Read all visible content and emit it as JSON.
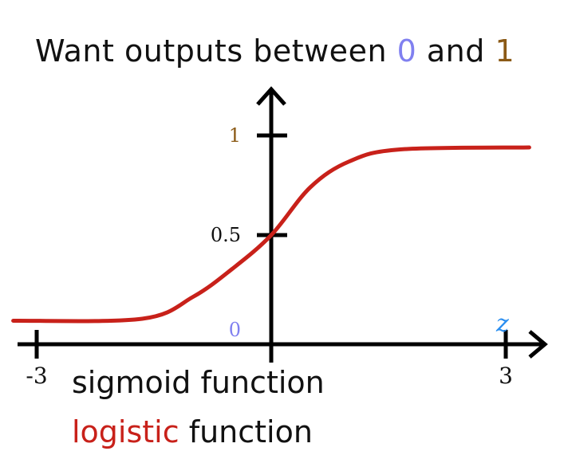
{
  "title": {
    "prefix": "Want outputs between ",
    "low": "0",
    "middle": " and ",
    "high": "1",
    "low_color": "#8080f0",
    "high_color": "#8b5a16"
  },
  "captions": {
    "line1": "sigmoid function",
    "line2_highlight": "logistic",
    "line2_rest": " function",
    "highlight_color": "#c8211a"
  },
  "chart_data": {
    "type": "line",
    "title": "Want outputs between 0 and 1",
    "xlabel": "z",
    "ylabel": "",
    "xlim": [
      -3.3,
      3.3
    ],
    "ylim": [
      0,
      1
    ],
    "x_tick_labels": [
      {
        "value": -3,
        "label": "-3"
      },
      {
        "value": 3,
        "label": "3"
      }
    ],
    "y_tick_labels": [
      {
        "value": 1,
        "label": "1",
        "color": "#8b5a16"
      },
      {
        "value": 0.5,
        "label": "0.5",
        "color": "#111111"
      },
      {
        "value": 0,
        "label": "0",
        "color": "#8080f0"
      }
    ],
    "series": [
      {
        "color": "#c8211a",
        "x": [
          -3.3,
          -1.65,
          -1.0,
          -0.5,
          0.0,
          0.5,
          1.0,
          1.65,
          3.3
        ],
        "y": [
          0.07,
          0.08,
          0.19,
          0.33,
          0.5,
          0.74,
          0.87,
          0.93,
          0.94
        ]
      }
    ],
    "axis_color": "#000000",
    "xlabel_color": "#2a8ef0"
  }
}
